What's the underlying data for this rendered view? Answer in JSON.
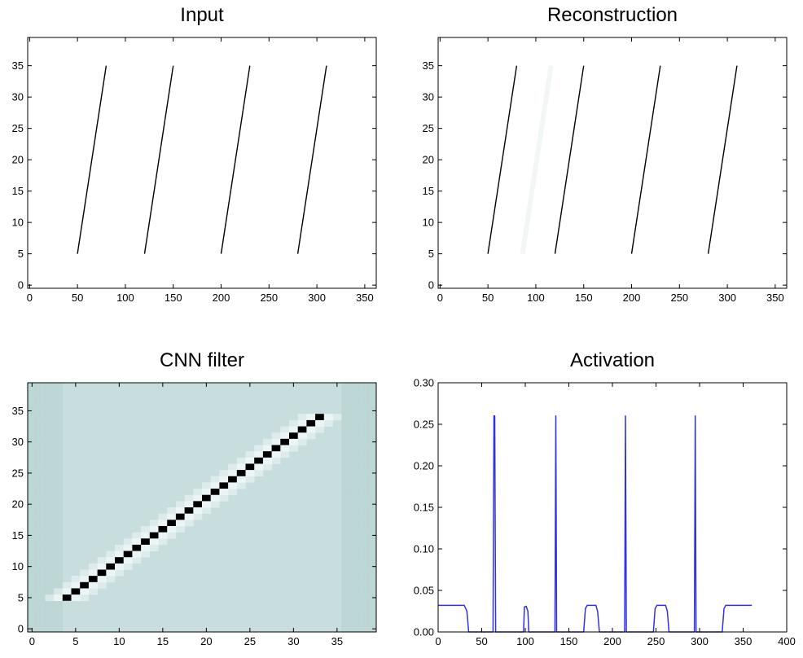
{
  "chart_data": [
    {
      "type": "line",
      "title": "Input",
      "xlim": [
        -2,
        362
      ],
      "ylim": [
        -0.5,
        39.5
      ],
      "xticks": [
        "0",
        "50",
        "100",
        "150",
        "200",
        "250",
        "300",
        "350"
      ],
      "yticks": [
        "0",
        "5",
        "10",
        "15",
        "20",
        "25",
        "30",
        "35"
      ],
      "grid": false,
      "series": [
        {
          "x": [
            50,
            80
          ],
          "y": [
            5,
            35
          ]
        },
        {
          "x": [
            120,
            150
          ],
          "y": [
            5,
            35
          ]
        },
        {
          "x": [
            200,
            230
          ],
          "y": [
            5,
            35
          ]
        },
        {
          "x": [
            280,
            310
          ],
          "y": [
            5,
            35
          ]
        }
      ]
    },
    {
      "type": "line",
      "title": "Reconstruction",
      "xlim": [
        -2,
        362
      ],
      "ylim": [
        -0.5,
        39.5
      ],
      "xticks": [
        "0",
        "50",
        "100",
        "150",
        "200",
        "250",
        "300",
        "350"
      ],
      "yticks": [
        "0",
        "5",
        "10",
        "15",
        "20",
        "25",
        "30",
        "35"
      ],
      "grid": false,
      "series": [
        {
          "x": [
            50,
            80
          ],
          "y": [
            5,
            35
          ]
        },
        {
          "x": [
            120,
            150
          ],
          "y": [
            5,
            35
          ]
        },
        {
          "x": [
            200,
            230
          ],
          "y": [
            5,
            35
          ]
        },
        {
          "x": [
            280,
            310
          ],
          "y": [
            5,
            35
          ]
        },
        {
          "x": [
            86,
            116
          ],
          "y": [
            5,
            35
          ],
          "faint": true
        }
      ]
    },
    {
      "type": "heatmap",
      "title": "CNN filter",
      "xlim": [
        -0.5,
        39.5
      ],
      "ylim": [
        -0.5,
        39.5
      ],
      "xticks": [
        "0",
        "5",
        "10",
        "15",
        "20",
        "25",
        "30",
        "35"
      ],
      "yticks": [
        "0",
        "5",
        "10",
        "15",
        "20",
        "25",
        "30",
        "35"
      ],
      "grid": false,
      "diagonal_start": [
        4,
        5
      ],
      "diagonal_end": [
        33,
        34
      ],
      "colors": {
        "background": "#c8dede",
        "edge": "#b4d0d0",
        "halo": "#eef6f6",
        "line": "#000000"
      }
    },
    {
      "type": "line",
      "title": "Activation",
      "xlim": [
        0,
        400
      ],
      "ylim": [
        0,
        0.3
      ],
      "xticks": [
        "0",
        "50",
        "100",
        "150",
        "200",
        "250",
        "300",
        "350",
        "400"
      ],
      "yticks": [
        "0.00",
        "0.05",
        "0.10",
        "0.15",
        "0.20",
        "0.25",
        "0.30"
      ],
      "grid": false,
      "color": "#3333dd",
      "series": [
        {
          "x": [
            0,
            30,
            33,
            35,
            63,
            64,
            65,
            66,
            67,
            98,
            99,
            101,
            103,
            104,
            134,
            135,
            136,
            167,
            169,
            171,
            181,
            183,
            185,
            214,
            215,
            216,
            247,
            249,
            251,
            261,
            263,
            265,
            294,
            295,
            296,
            326,
            328,
            330,
            360
          ],
          "y": [
            0.032,
            0.032,
            0.025,
            0,
            0,
            0.26,
            0.26,
            0,
            0,
            0,
            0.03,
            0.031,
            0.025,
            0,
            0,
            0.26,
            0,
            0,
            0.028,
            0.032,
            0.032,
            0.025,
            0,
            0,
            0.26,
            0,
            0,
            0.028,
            0.032,
            0.032,
            0.025,
            0,
            0,
            0.26,
            0,
            0,
            0.028,
            0.032,
            0.032
          ]
        }
      ]
    }
  ]
}
